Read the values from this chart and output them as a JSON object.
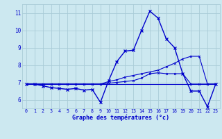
{
  "xlabel": "Graphe des températures (°c)",
  "background_color": "#cce8f0",
  "grid_color": "#aaccd8",
  "line_color": "#0000cc",
  "hours": [
    0,
    1,
    2,
    3,
    4,
    5,
    6,
    7,
    8,
    9,
    10,
    11,
    12,
    13,
    14,
    15,
    16,
    17,
    18,
    19,
    20,
    21,
    22,
    23
  ],
  "temp_main": [
    6.9,
    6.9,
    6.8,
    6.7,
    6.65,
    6.6,
    6.65,
    6.55,
    6.6,
    5.85,
    7.1,
    8.2,
    8.8,
    8.85,
    10.0,
    11.1,
    10.7,
    9.5,
    9.0,
    7.5,
    6.5,
    6.5,
    5.6,
    6.9
  ],
  "temp_line2": [
    6.9,
    6.9,
    6.9,
    6.9,
    6.9,
    6.9,
    6.9,
    6.9,
    6.9,
    6.9,
    7.05,
    7.15,
    7.3,
    7.4,
    7.5,
    7.6,
    7.7,
    7.9,
    8.1,
    8.35,
    8.5,
    8.5,
    6.9,
    6.9
  ],
  "temp_line3": [
    6.9,
    6.9,
    6.9,
    6.9,
    6.9,
    6.9,
    6.9,
    6.9,
    6.9,
    6.9,
    6.95,
    7.0,
    7.05,
    7.1,
    7.25,
    7.5,
    7.55,
    7.5,
    7.5,
    7.5,
    6.9,
    6.9,
    6.9,
    6.9
  ],
  "temp_flat": [
    6.9,
    6.9,
    6.9,
    6.9,
    6.9,
    6.9,
    6.9,
    6.9,
    6.9,
    6.9,
    6.9,
    6.9,
    6.9,
    6.9,
    6.9,
    6.9,
    6.9,
    6.9,
    6.9,
    6.9,
    6.9,
    6.9,
    6.9,
    6.9
  ],
  "ylim": [
    5.5,
    11.5
  ],
  "yticks": [
    6,
    7,
    8,
    9,
    10,
    11
  ],
  "xtick_labels": [
    "0",
    "1",
    "2",
    "3",
    "4",
    "5",
    "6",
    "7",
    "8",
    "9",
    "10",
    "11",
    "12",
    "13",
    "14",
    "15",
    "16",
    "17",
    "18",
    "19",
    "20",
    "21",
    "22",
    "23"
  ]
}
